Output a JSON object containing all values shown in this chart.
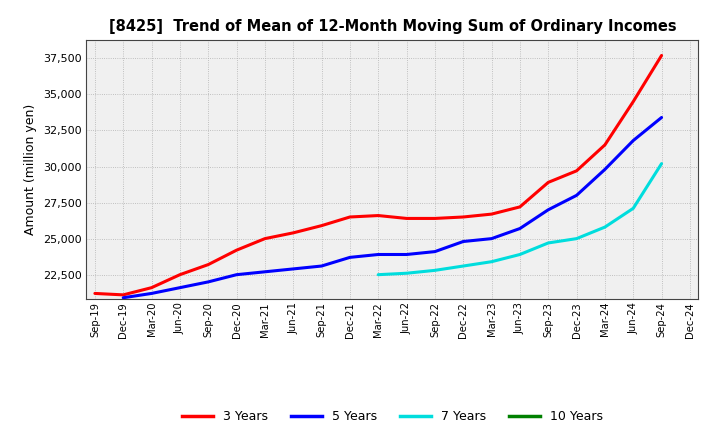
{
  "title": "[8425]  Trend of Mean of 12-Month Moving Sum of Ordinary Incomes",
  "ylabel": "Amount (million yen)",
  "ylim": [
    20800,
    38800
  ],
  "yticks": [
    22500,
    25000,
    27500,
    30000,
    32500,
    35000,
    37500
  ],
  "x_labels": [
    "Sep-19",
    "Dec-19",
    "Mar-20",
    "Jun-20",
    "Sep-20",
    "Dec-20",
    "Mar-21",
    "Jun-21",
    "Sep-21",
    "Dec-21",
    "Mar-22",
    "Jun-22",
    "Sep-22",
    "Dec-22",
    "Mar-23",
    "Jun-23",
    "Sep-23",
    "Dec-23",
    "Mar-24",
    "Jun-24",
    "Sep-24",
    "Dec-24"
  ],
  "series": {
    "3 Years": {
      "color": "#ff0000",
      "data": [
        21200,
        21100,
        21600,
        22500,
        23200,
        24200,
        25000,
        25400,
        25900,
        26500,
        26600,
        26400,
        26400,
        26500,
        26700,
        27200,
        28900,
        29700,
        31500,
        34500,
        37700,
        null
      ]
    },
    "5 Years": {
      "color": "#0000ff",
      "data": [
        null,
        20900,
        21200,
        21600,
        22000,
        22500,
        22700,
        22900,
        23100,
        23700,
        23900,
        23900,
        24100,
        24800,
        25000,
        25700,
        27000,
        28000,
        29800,
        31800,
        33400,
        null
      ]
    },
    "7 Years": {
      "color": "#00dddd",
      "data": [
        null,
        null,
        null,
        null,
        null,
        null,
        null,
        null,
        null,
        null,
        22500,
        22600,
        22800,
        23100,
        23400,
        23900,
        24700,
        25000,
        25800,
        27100,
        30200,
        null
      ]
    },
    "10 Years": {
      "color": "#008000",
      "data": [
        null,
        null,
        null,
        null,
        null,
        null,
        null,
        null,
        null,
        null,
        null,
        null,
        null,
        null,
        null,
        null,
        null,
        null,
        null,
        null,
        null,
        null
      ]
    }
  },
  "background_color": "#ffffff",
  "plot_bg_color": "#f0f0f0",
  "grid_color": "#b0b0b0",
  "legend_labels": [
    "3 Years",
    "5 Years",
    "7 Years",
    "10 Years"
  ],
  "legend_colors": [
    "#ff0000",
    "#0000ff",
    "#00dddd",
    "#008000"
  ]
}
